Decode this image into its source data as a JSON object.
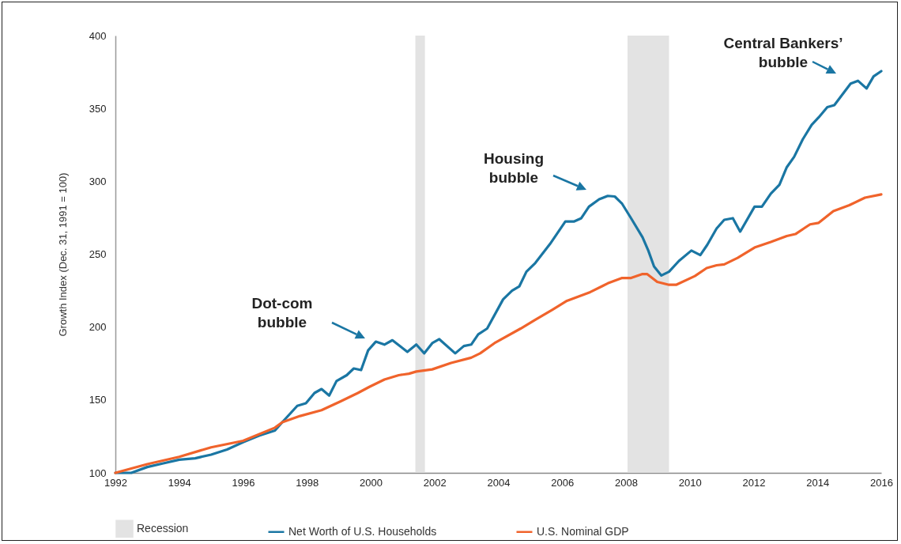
{
  "chart_data": {
    "type": "line",
    "ylabel": "Growth Index (Dec. 31, 1991 = 100)",
    "xlim": [
      1992,
      2016
    ],
    "ylim": [
      100,
      400
    ],
    "xticks": [
      1992,
      1994,
      1996,
      1998,
      2000,
      2002,
      2004,
      2006,
      2008,
      2010,
      2012,
      2014,
      2016
    ],
    "yticks": [
      100,
      150,
      200,
      250,
      300,
      350,
      400
    ],
    "grid": false,
    "legend": "bottom",
    "line_style": "solid",
    "bands": [
      {
        "axis": "x",
        "from": 2001.4,
        "to": 2001.7,
        "label": "Recession",
        "color": "#e3e3e3"
      },
      {
        "axis": "x",
        "from": 2008.05,
        "to": 2009.35,
        "color": "#e3e3e3"
      }
    ],
    "annotations": [
      "Dot-com\nbubble",
      "Housing\nbubble",
      "Central Bankers’\nbubble"
    ],
    "series": [
      {
        "name": "Net Worth of U.S. Households",
        "color": "#1a76a3",
        "x": [
          1992,
          1992.5,
          1993,
          1993.5,
          1994,
          1994.5,
          1995,
          1995.5,
          1996,
          1996.5,
          1997,
          1997.23,
          1997.7,
          1997.97,
          1998.24,
          1998.46,
          1998.7,
          1998.93,
          1999.25,
          1999.47,
          1999.7,
          1999.92,
          2000.16,
          2000.43,
          2000.68,
          2001.15,
          2001.43,
          2001.68,
          2001.93,
          2002.15,
          2002.65,
          2002.92,
          2003.15,
          2003.37,
          2003.65,
          2004.15,
          2004.43,
          2004.66,
          2004.88,
          2005.16,
          2005.62,
          2006.1,
          2006.38,
          2006.6,
          2006.84,
          2007.16,
          2007.43,
          2007.65,
          2007.88,
          2008.16,
          2008.52,
          2008.7,
          2008.88,
          2009.11,
          2009.35,
          2009.66,
          2010.05,
          2010.33,
          2010.55,
          2010.84,
          2011.08,
          2011.35,
          2011.58,
          2012.03,
          2012.26,
          2012.54,
          2012.81,
          2013.04,
          2013.27,
          2013.54,
          2013.82,
          2014.04,
          2014.31,
          2014.53,
          2015.04,
          2015.27,
          2015.54,
          2015.76,
          2016
        ],
        "values": [
          100,
          100,
          104,
          106.5,
          109,
          110,
          112.5,
          116,
          121,
          125.5,
          129,
          134.7,
          146,
          147.7,
          154.8,
          157.5,
          153,
          163,
          167,
          171.6,
          170.5,
          184,
          190,
          188,
          191,
          183,
          188,
          182,
          189,
          191.7,
          182,
          187,
          188,
          195,
          199,
          219,
          225,
          228,
          238,
          244,
          257,
          272.5,
          272.5,
          274.7,
          282.6,
          287.7,
          290,
          289.6,
          284.6,
          274.7,
          261.6,
          252.5,
          241.6,
          235.4,
          238,
          245.4,
          252.5,
          249.4,
          256.5,
          267.6,
          273.6,
          274.7,
          265.5,
          282.6,
          282.6,
          291.6,
          297.7,
          309.7,
          316.8,
          328.8,
          338.8,
          343.9,
          350.9,
          352.3,
          367,
          369,
          363.7,
          372,
          375.6
        ]
      },
      {
        "name": "U.S. Nominal GDP",
        "color": "#f0632b",
        "x": [
          1992,
          1993,
          1994,
          1995,
          1996,
          1997,
          1997.23,
          1997.79,
          1998.46,
          1999.05,
          1999.6,
          1999.96,
          2000.43,
          2000.88,
          2001.2,
          2001.43,
          2001.93,
          2002.52,
          2003.15,
          2003.43,
          2003.88,
          2004.7,
          2005.16,
          2005.7,
          2006.15,
          2006.88,
          2007.43,
          2007.88,
          2008.16,
          2008.52,
          2008.66,
          2008.98,
          2009.35,
          2009.57,
          2010.16,
          2010.53,
          2010.84,
          2011.08,
          2011.5,
          2012.03,
          2012.54,
          2013.04,
          2013.31,
          2013.77,
          2014.04,
          2014.5,
          2015,
          2015.49,
          2016
        ],
        "values": [
          100,
          106,
          111,
          117.5,
          122,
          131,
          134.7,
          139,
          143,
          149,
          154.8,
          159,
          164,
          167,
          168,
          169.5,
          171,
          175.4,
          179,
          182,
          189,
          199,
          205,
          212,
          218,
          224,
          230,
          233.7,
          233.7,
          236.4,
          236.4,
          231,
          229,
          229,
          235,
          240.5,
          242.4,
          243,
          247.5,
          254.6,
          258.4,
          262.5,
          263.8,
          270.5,
          271.5,
          279.6,
          283.6,
          288.8,
          291
        ]
      }
    ]
  }
}
